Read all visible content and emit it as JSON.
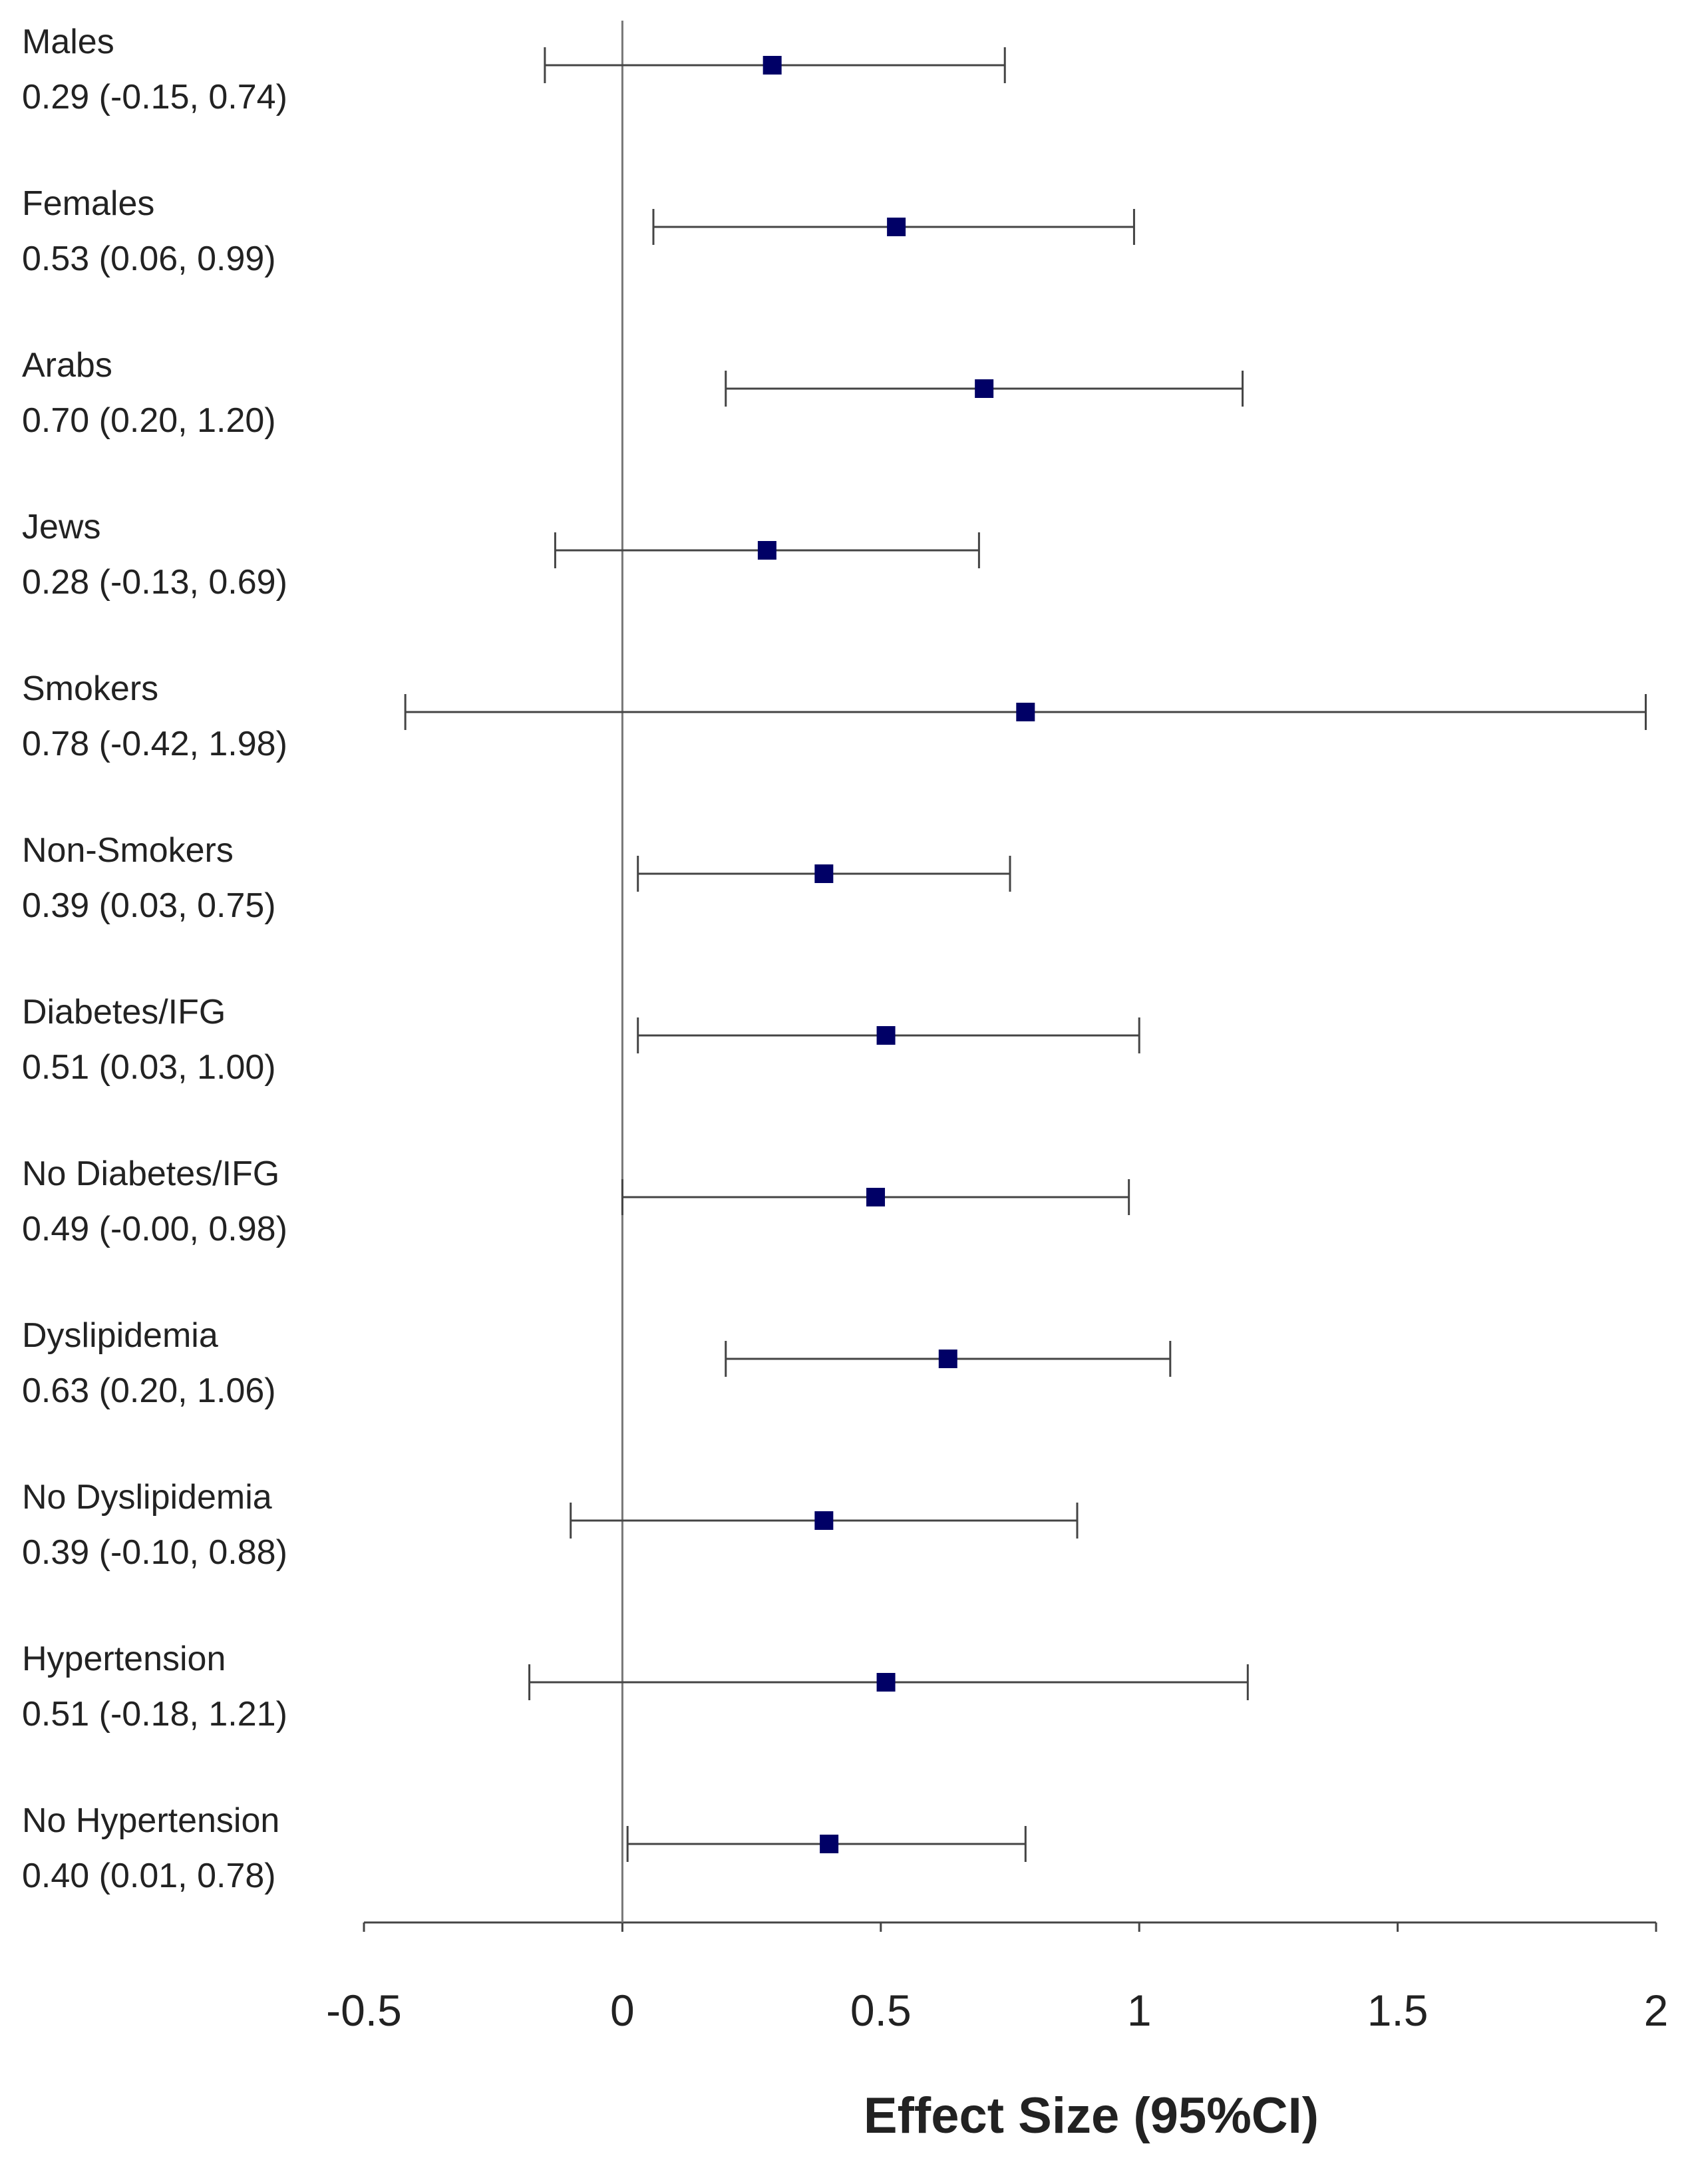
{
  "chart_data": {
    "type": "forest",
    "categories": [
      "Males",
      "Females",
      "Arabs",
      "Jews",
      "Smokers",
      "Non-Smokers",
      "Diabetes/IFG",
      "No Diabetes/IFG",
      "Dyslipidemia",
      "No Dyslipidemia",
      "Hypertension",
      "No Hypertension"
    ],
    "values": [
      0.29,
      0.53,
      0.7,
      0.28,
      0.78,
      0.39,
      0.51,
      0.49,
      0.63,
      0.39,
      0.51,
      0.4
    ],
    "lower": [
      -0.15,
      0.06,
      0.2,
      -0.13,
      -0.42,
      0.03,
      0.03,
      -0.0,
      0.2,
      -0.1,
      -0.18,
      0.01
    ],
    "upper": [
      0.74,
      0.99,
      1.2,
      0.69,
      1.98,
      0.75,
      1.0,
      0.98,
      1.06,
      0.88,
      1.21,
      0.78
    ],
    "value_labels": [
      "0.29 (-0.15, 0.74)",
      "0.53 (0.06, 0.99)",
      "0.70 (0.20, 1.20)",
      "0.28 (-0.13, 0.69)",
      "0.78 (-0.42, 1.98)",
      "0.39 (0.03, 0.75)",
      "0.51 (0.03, 1.00)",
      "0.49 (-0.00, 0.98)",
      "0.63 (0.20, 1.06)",
      "0.39 (-0.10, 0.88)",
      "0.51 (-0.18, 1.21)",
      "0.40 (0.01, 0.78)"
    ],
    "color": "#000066",
    "xlim": [
      -0.5,
      2
    ],
    "xticks": [
      -0.5,
      0,
      0.5,
      1,
      1.5,
      2
    ],
    "reference_line": 0,
    "xlabel": "Effect Size (95%CI)"
  }
}
